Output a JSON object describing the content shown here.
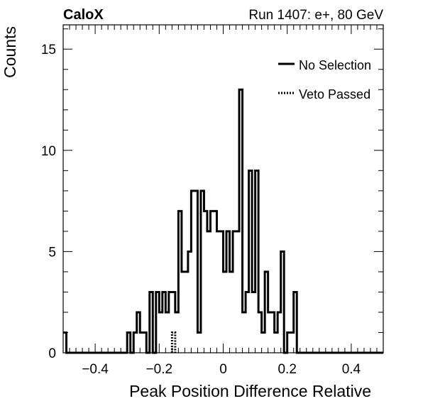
{
  "header": {
    "left": "CaloX",
    "right": "Run 1407: e+, 80 GeV"
  },
  "chart_data": {
    "type": "histogram",
    "xlabel": "Peak Position Difference Relative",
    "ylabel": "Counts",
    "xlim": [
      -0.5,
      0.5
    ],
    "ylim": [
      0,
      16.2
    ],
    "x_ticks": [
      -0.4,
      -0.2,
      0,
      0.2,
      0.4
    ],
    "x_tick_labels": [
      "−0.4",
      "−0.2",
      "0",
      "0.2",
      "0.4"
    ],
    "y_ticks": [
      0,
      5,
      10,
      15
    ],
    "y_tick_labels": [
      "0",
      "5",
      "10",
      "15"
    ],
    "bin_width": 0.01,
    "bin_start": -0.5,
    "legend_position": "top-right",
    "series": [
      {
        "name": "No Selection",
        "style": "solid",
        "color": "#000000",
        "values": [
          1,
          0,
          0,
          0,
          0,
          0,
          0,
          0,
          0,
          0,
          0,
          0,
          0,
          0,
          0,
          0,
          0,
          0,
          0,
          0,
          1,
          0,
          1,
          2,
          1,
          1,
          0,
          3,
          0,
          3,
          2,
          3,
          2,
          3,
          3,
          2,
          7,
          4,
          4,
          5,
          8,
          8,
          1,
          8,
          7,
          6,
          7,
          7,
          6,
          6,
          4,
          6,
          4,
          6,
          6,
          13,
          2,
          3,
          9,
          3,
          9,
          2,
          1,
          4,
          2,
          2,
          1,
          2,
          5,
          0,
          1,
          1,
          3,
          0,
          0,
          0,
          0,
          0,
          0,
          0,
          0,
          0,
          0,
          0,
          0,
          0,
          0,
          0,
          0,
          0,
          0,
          0,
          0,
          0,
          0,
          0,
          0,
          0,
          0,
          0
        ]
      },
      {
        "name": "Veto Passed",
        "style": "dotted",
        "color": "#000000",
        "values": [
          0,
          0,
          0,
          0,
          0,
          0,
          0,
          0,
          0,
          0,
          0,
          0,
          0,
          0,
          0,
          0,
          0,
          0,
          0,
          0,
          0,
          0,
          0,
          0,
          0,
          0,
          0,
          0,
          0,
          0,
          0,
          0,
          0,
          0,
          1,
          0,
          0,
          0,
          0,
          0,
          0,
          0,
          0,
          0,
          0,
          0,
          0,
          0,
          0,
          0,
          0,
          0,
          0,
          0,
          0,
          0,
          0,
          0,
          0,
          0,
          0,
          0,
          0,
          0,
          0,
          0,
          0,
          0,
          0,
          0,
          0,
          0,
          0,
          0,
          0,
          0,
          0,
          0,
          0,
          0,
          0,
          0,
          0,
          0,
          0,
          0,
          0,
          0,
          0,
          0,
          0,
          0,
          0,
          0,
          0,
          0,
          0,
          0,
          0,
          0
        ]
      }
    ]
  }
}
